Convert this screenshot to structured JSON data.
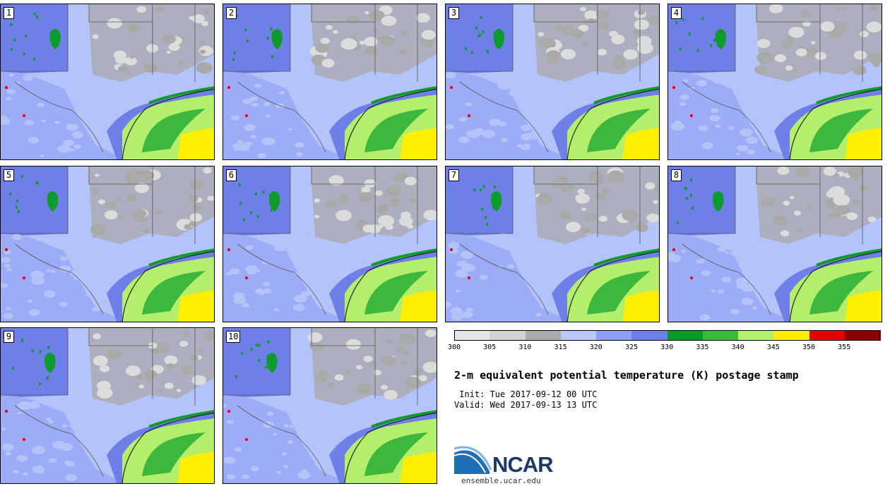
{
  "title": "2-m equivalent potential temperature (K) postage stamp",
  "init_line": " Init: Tue 2017-09-12 00 UTC",
  "valid_line": "Valid: Wed 2017-09-13 13 UTC",
  "logo_text": "NCAR",
  "website": "ensemble.ucar.edu",
  "panels": [
    "1",
    "2",
    "3",
    "4",
    "5",
    "6",
    "7",
    "8",
    "9",
    "10"
  ],
  "colorbar": {
    "ticks": [
      "300",
      "305",
      "310",
      "315",
      "320",
      "325",
      "330",
      "335",
      "340",
      "345",
      "350",
      "355"
    ],
    "colors": [
      "#e6e6e6",
      "#d2d2d2",
      "#aaaaaa",
      "#bcc7fa",
      "#8d9ef5",
      "#6c7ee8",
      "#0a9a2a",
      "#3cba3c",
      "#b3f06e",
      "#ffee00",
      "#e60000",
      "#8b0000"
    ]
  },
  "map_colors": {
    "gray_light": "#dcdcdc",
    "gray": "#a9a9a9",
    "blue_light": "#b4c3fa",
    "blue": "#8899f2",
    "blue_dark": "#6f7fe8",
    "green_dark": "#0f9a2d",
    "green": "#3db83d",
    "green_light": "#b3ef6c",
    "yellow": "#ffef00",
    "red": "#e00000"
  }
}
